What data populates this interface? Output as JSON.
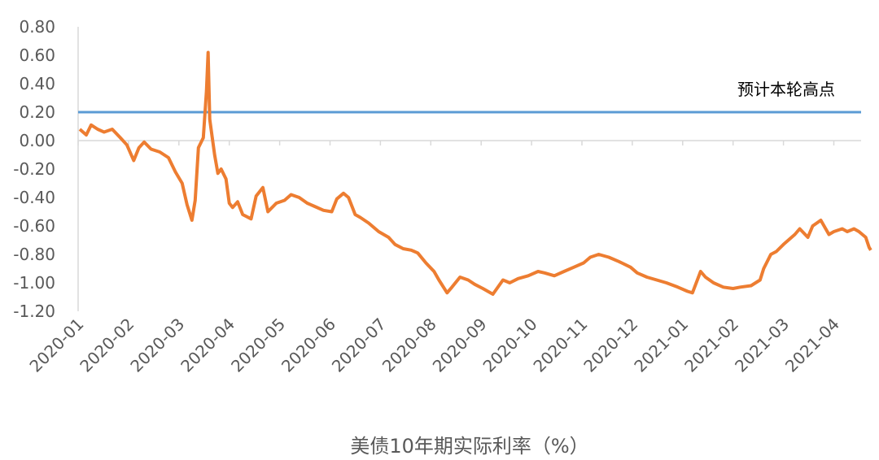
{
  "chart_data": {
    "type": "line",
    "xlabel": "美债10年期实际利率（%）",
    "ylabel": "",
    "ylim": [
      -1.2,
      0.8
    ],
    "y_ticks": [
      "0.80",
      "0.60",
      "0.40",
      "0.20",
      "0.00",
      "-0.20",
      "-0.40",
      "-0.60",
      "-0.80",
      "-1.00",
      "-1.20"
    ],
    "x_ticks": [
      "2020-01",
      "2020-02",
      "2020-03",
      "2020-04",
      "2020-05",
      "2020-06",
      "2020-07",
      "2020-08",
      "2020-09",
      "2020-10",
      "2020-11",
      "2020-12",
      "2021-01",
      "2021-02",
      "2021-03",
      "2021-04"
    ],
    "grid": false,
    "annotation": "预计本轮高点",
    "colors": {
      "real_rate": "#ED7D31",
      "reference": "#5B9BD5",
      "axis": "#D9D9D9",
      "text": "#595959"
    },
    "series": [
      {
        "key": "real_rate",
        "x": [
          "2020-01-02",
          "2020-01-06",
          "2020-01-09",
          "2020-01-13",
          "2020-01-17",
          "2020-01-22",
          "2020-01-27",
          "2020-01-31",
          "2020-02-04",
          "2020-02-07",
          "2020-02-10",
          "2020-02-14",
          "2020-02-19",
          "2020-02-24",
          "2020-02-28",
          "2020-03-03",
          "2020-03-06",
          "2020-03-09",
          "2020-03-11",
          "2020-03-13",
          "2020-03-16",
          "2020-03-18",
          "2020-03-19",
          "2020-03-20",
          "2020-03-23",
          "2020-03-25",
          "2020-03-27",
          "2020-03-30",
          "2020-04-01",
          "2020-04-03",
          "2020-04-06",
          "2020-04-09",
          "2020-04-14",
          "2020-04-17",
          "2020-04-21",
          "2020-04-24",
          "2020-04-29",
          "2020-05-04",
          "2020-05-08",
          "2020-05-13",
          "2020-05-18",
          "2020-05-22",
          "2020-05-28",
          "2020-06-02",
          "2020-06-05",
          "2020-06-09",
          "2020-06-12",
          "2020-06-16",
          "2020-06-19",
          "2020-06-24",
          "2020-06-30",
          "2020-07-06",
          "2020-07-10",
          "2020-07-15",
          "2020-07-20",
          "2020-07-24",
          "2020-07-29",
          "2020-08-03",
          "2020-08-06",
          "2020-08-11",
          "2020-08-14",
          "2020-08-19",
          "2020-08-24",
          "2020-08-28",
          "2020-09-02",
          "2020-09-08",
          "2020-09-14",
          "2020-09-18",
          "2020-09-23",
          "2020-09-29",
          "2020-10-05",
          "2020-10-09",
          "2020-10-15",
          "2020-10-21",
          "2020-10-27",
          "2020-11-02",
          "2020-11-06",
          "2020-11-11",
          "2020-11-17",
          "2020-11-23",
          "2020-11-30",
          "2020-12-04",
          "2020-12-10",
          "2020-12-16",
          "2020-12-22",
          "2020-12-29",
          "2021-01-04",
          "2021-01-07",
          "2021-01-12",
          "2021-01-15",
          "2021-01-20",
          "2021-01-26",
          "2021-02-01",
          "2021-02-05",
          "2021-02-11",
          "2021-02-16",
          "2021-02-18",
          "2021-02-22",
          "2021-02-25",
          "2021-03-01",
          "2021-03-04",
          "2021-03-08",
          "2021-03-11",
          "2021-03-16",
          "2021-03-19",
          "2021-03-24",
          "2021-03-29",
          "2021-04-01",
          "2021-04-06",
          "2021-04-09",
          "2021-04-13",
          "2021-04-16",
          "2021-04-20",
          "2021-04-22",
          "2021-04-23"
        ],
        "values": [
          0.08,
          0.04,
          0.11,
          0.08,
          0.06,
          0.08,
          0.02,
          -0.03,
          -0.14,
          -0.05,
          -0.01,
          -0.06,
          -0.08,
          -0.12,
          -0.22,
          -0.3,
          -0.45,
          -0.56,
          -0.42,
          -0.05,
          0.02,
          0.35,
          0.62,
          0.15,
          -0.1,
          -0.23,
          -0.2,
          -0.27,
          -0.44,
          -0.47,
          -0.43,
          -0.52,
          -0.55,
          -0.39,
          -0.33,
          -0.5,
          -0.44,
          -0.42,
          -0.38,
          -0.4,
          -0.44,
          -0.46,
          -0.49,
          -0.5,
          -0.41,
          -0.37,
          -0.4,
          -0.52,
          -0.54,
          -0.58,
          -0.64,
          -0.68,
          -0.73,
          -0.76,
          -0.77,
          -0.79,
          -0.86,
          -0.92,
          -0.98,
          -1.07,
          -1.03,
          -0.96,
          -0.98,
          -1.01,
          -1.04,
          -1.08,
          -0.98,
          -1.0,
          -0.97,
          -0.95,
          -0.92,
          -0.93,
          -0.95,
          -0.92,
          -0.89,
          -0.86,
          -0.82,
          -0.8,
          -0.82,
          -0.85,
          -0.89,
          -0.93,
          -0.96,
          -0.98,
          -1.0,
          -1.03,
          -1.06,
          -1.07,
          -0.92,
          -0.96,
          -1.0,
          -1.03,
          -1.04,
          -1.03,
          -1.02,
          -0.98,
          -0.9,
          -0.8,
          -0.78,
          -0.73,
          -0.7,
          -0.66,
          -0.62,
          -0.68,
          -0.6,
          -0.56,
          -0.66,
          -0.64,
          -0.62,
          -0.64,
          -0.62,
          -0.64,
          -0.68,
          -0.75,
          -0.77
        ]
      },
      {
        "key": "reference",
        "x": [
          "2020-01-02",
          "2021-04-23"
        ],
        "values": [
          0.2,
          0.2
        ]
      }
    ]
  }
}
